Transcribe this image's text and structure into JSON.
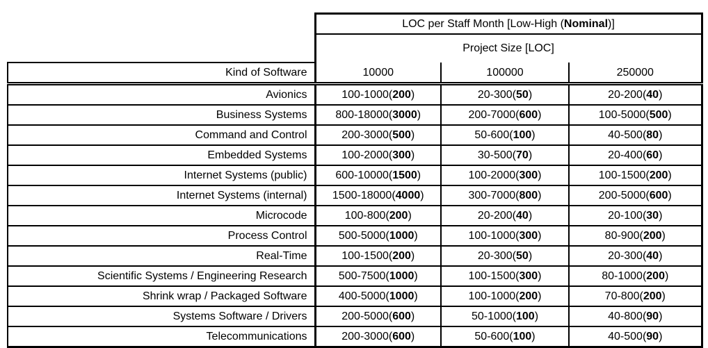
{
  "colors": {
    "border": "#000000",
    "text": "#000000",
    "background": "#ffffff"
  },
  "table": {
    "main_header": {
      "pre": "LOC per Staff Month [Low-High (",
      "bold": "Nominal",
      "post": ")]"
    },
    "subheader": "Project Size [LOC]",
    "row_header_label": "Kind of Software",
    "size_columns": [
      "10000",
      "100000",
      "250000"
    ],
    "rows": [
      {
        "kind": "Avionics",
        "values": [
          {
            "range": "100-1000",
            "nominal": "200"
          },
          {
            "range": "20-300",
            "nominal": "50"
          },
          {
            "range": "20-200",
            "nominal": "40"
          }
        ]
      },
      {
        "kind": "Business Systems",
        "values": [
          {
            "range": "800-18000",
            "nominal": "3000"
          },
          {
            "range": "200-7000",
            "nominal": "600"
          },
          {
            "range": "100-5000",
            "nominal": "500"
          }
        ]
      },
      {
        "kind": "Command and Control",
        "values": [
          {
            "range": "200-3000",
            "nominal": "500"
          },
          {
            "range": "50-600",
            "nominal": "100"
          },
          {
            "range": "40-500",
            "nominal": "80"
          }
        ]
      },
      {
        "kind": "Embedded Systems",
        "values": [
          {
            "range": "100-2000",
            "nominal": "300"
          },
          {
            "range": "30-500",
            "nominal": "70"
          },
          {
            "range": "20-400",
            "nominal": "60"
          }
        ]
      },
      {
        "kind": "Internet Systems (public)",
        "values": [
          {
            "range": "600-10000",
            "nominal": "1500"
          },
          {
            "range": "100-2000",
            "nominal": "300"
          },
          {
            "range": "100-1500",
            "nominal": "200"
          }
        ]
      },
      {
        "kind": "Internet Systems (internal)",
        "values": [
          {
            "range": "1500-18000",
            "nominal": "4000"
          },
          {
            "range": "300-7000",
            "nominal": "800"
          },
          {
            "range": "200-5000",
            "nominal": "600"
          }
        ]
      },
      {
        "kind": "Microcode",
        "values": [
          {
            "range": "100-800",
            "nominal": "200"
          },
          {
            "range": "20-200",
            "nominal": "40"
          },
          {
            "range": "20-100",
            "nominal": "30"
          }
        ]
      },
      {
        "kind": "Process Control",
        "values": [
          {
            "range": "500-5000",
            "nominal": "1000"
          },
          {
            "range": "100-1000",
            "nominal": "300"
          },
          {
            "range": "80-900",
            "nominal": "200"
          }
        ]
      },
      {
        "kind": "Real-Time",
        "values": [
          {
            "range": "100-1500",
            "nominal": "200"
          },
          {
            "range": "20-300",
            "nominal": "50"
          },
          {
            "range": "20-300",
            "nominal": "40"
          }
        ]
      },
      {
        "kind": "Scientific Systems / Engineering Research",
        "values": [
          {
            "range": "500-7500",
            "nominal": "1000"
          },
          {
            "range": "100-1500",
            "nominal": "300"
          },
          {
            "range": "80-1000",
            "nominal": "200"
          }
        ]
      },
      {
        "kind": "Shrink wrap / Packaged Software",
        "values": [
          {
            "range": "400-5000",
            "nominal": "1000"
          },
          {
            "range": "100-1000",
            "nominal": "200"
          },
          {
            "range": "70-800",
            "nominal": "200"
          }
        ]
      },
      {
        "kind": "Systems Software / Drivers",
        "values": [
          {
            "range": "200-5000",
            "nominal": "600"
          },
          {
            "range": "50-1000",
            "nominal": "100"
          },
          {
            "range": "40-800",
            "nominal": "90"
          }
        ]
      },
      {
        "kind": "Telecommunications",
        "values": [
          {
            "range": "200-3000",
            "nominal": "600"
          },
          {
            "range": "50-600",
            "nominal": "100"
          },
          {
            "range": "40-500",
            "nominal": "90"
          }
        ]
      }
    ]
  }
}
